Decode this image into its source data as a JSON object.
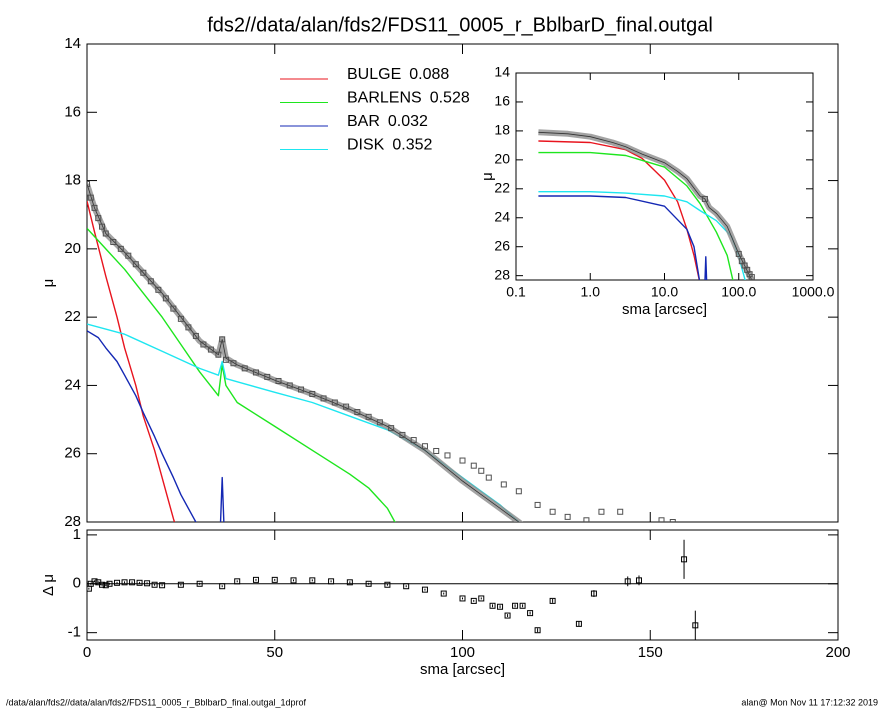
{
  "chart_data": [
    {
      "type": "line",
      "title": "fds2//data/alan/fds2/FDS11_0005_r_BblbarD_final.outgal",
      "ylabel": "μ",
      "xlim": [
        0,
        200
      ],
      "xticks": [
        0,
        50,
        100,
        150,
        200
      ],
      "ylim": [
        28,
        14
      ],
      "yticks": [
        14,
        16,
        18,
        20,
        22,
        24,
        26,
        28
      ],
      "legend": true,
      "series": [
        {
          "name": "BULGE",
          "fraction": 0.088,
          "color": "#e8141e",
          "style": "line",
          "x": [
            0,
            2,
            5,
            8,
            10,
            13,
            15,
            18,
            20,
            23,
            25
          ],
          "values": [
            18.6,
            19.5,
            20.8,
            22.0,
            22.9,
            24.0,
            24.9,
            25.9,
            26.7,
            27.9,
            28.6
          ]
        },
        {
          "name": "BARLENS",
          "fraction": 0.528,
          "color": "#1ee61e",
          "style": "line",
          "x": [
            0,
            5,
            10,
            15,
            20,
            25,
            30,
            35,
            36,
            37,
            40,
            50,
            60,
            70,
            75,
            80,
            82,
            84
          ],
          "values": [
            19.4,
            20.0,
            20.6,
            21.3,
            22.0,
            22.8,
            23.6,
            24.3,
            23.4,
            24.0,
            24.5,
            25.2,
            25.9,
            26.6,
            27.0,
            27.6,
            28.0,
            28.4
          ]
        },
        {
          "name": "BAR",
          "fraction": 0.032,
          "color": "#1428b4",
          "style": "line",
          "x": [
            0,
            3,
            5,
            8,
            10,
            13,
            15,
            18,
            20,
            23,
            25,
            28,
            30,
            32,
            35.5,
            36,
            36.5
          ],
          "values": [
            22.4,
            22.6,
            22.9,
            23.3,
            23.7,
            24.3,
            24.8,
            25.5,
            26.0,
            26.7,
            27.2,
            27.8,
            28.2,
            null,
            28.2,
            26.7,
            28.2
          ]
        },
        {
          "name": "DISK",
          "fraction": 0.352,
          "color": "#1ee6f0",
          "style": "line",
          "x": [
            0,
            10,
            20,
            30,
            35,
            36,
            37,
            50,
            60,
            70,
            80,
            90,
            100,
            105,
            110,
            115,
            118
          ],
          "values": [
            22.2,
            22.5,
            23.0,
            23.5,
            23.7,
            23.3,
            23.8,
            24.2,
            24.5,
            24.9,
            25.3,
            25.9,
            26.7,
            27.1,
            27.5,
            28.0,
            28.3
          ]
        },
        {
          "color": "#8c8c8c",
          "style": "band",
          "x": [
            0,
            2,
            5,
            10,
            15,
            20,
            25,
            30,
            35,
            36,
            37,
            40,
            50,
            60,
            70,
            80,
            90,
            100,
            105,
            110,
            115,
            118
          ],
          "values": [
            18.1,
            18.8,
            19.55,
            20.1,
            20.7,
            21.3,
            22.0,
            22.7,
            23.1,
            22.65,
            23.2,
            23.4,
            23.85,
            24.25,
            24.7,
            25.2,
            25.9,
            26.8,
            27.2,
            27.6,
            28.0,
            28.3
          ]
        },
        {
          "color": "#505050",
          "style": "points",
          "x": [
            0,
            1,
            2,
            3,
            4,
            5,
            7,
            9,
            11,
            13,
            15,
            17,
            19,
            21,
            23,
            25,
            27,
            29,
            31,
            33,
            35,
            36,
            37,
            39,
            42,
            45,
            48,
            51,
            54,
            57,
            60,
            63,
            66,
            69,
            72,
            75,
            78,
            81,
            84,
            87,
            90,
            93,
            96,
            100,
            103,
            105,
            107,
            111,
            115,
            120,
            124,
            128,
            133,
            137,
            142,
            153,
            156
          ],
          "values": [
            18.1,
            18.5,
            18.8,
            19.1,
            19.35,
            19.55,
            19.8,
            20.0,
            20.2,
            20.45,
            20.7,
            20.95,
            21.2,
            21.45,
            21.75,
            22.05,
            22.3,
            22.55,
            22.8,
            22.95,
            23.1,
            22.65,
            23.25,
            23.35,
            23.5,
            23.62,
            23.75,
            23.87,
            24.0,
            24.12,
            24.25,
            24.38,
            24.5,
            24.62,
            24.78,
            24.92,
            25.08,
            25.25,
            25.45,
            25.6,
            25.78,
            25.92,
            26.05,
            26.2,
            26.35,
            26.5,
            26.7,
            26.9,
            27.1,
            27.5,
            27.7,
            27.85,
            27.95,
            27.7,
            27.7,
            27.95,
            28.0
          ]
        }
      ]
    },
    {
      "type": "residual",
      "ylabel": "Δ μ",
      "xlabel": "sma [arcsec]",
      "xlim": [
        0,
        200
      ],
      "xticks": [
        0,
        50,
        100,
        150,
        200
      ],
      "ylim": [
        -1.15,
        1.1
      ],
      "yticks": [
        -1,
        0,
        1
      ],
      "hline": 0,
      "series": [
        {
          "color": "#000000",
          "style": "points",
          "x": [
            0.5,
            1,
            2,
            3,
            4,
            5,
            6,
            8,
            10,
            12,
            14,
            16,
            18,
            20,
            25,
            30,
            36,
            40,
            45,
            50,
            55,
            60,
            65,
            70,
            75,
            80,
            85,
            90,
            95,
            100,
            103,
            105,
            108,
            110,
            112,
            114,
            116,
            118,
            120,
            124,
            131,
            135,
            144,
            147,
            159,
            162
          ],
          "values": [
            -0.1,
            0.0,
            0.05,
            0.03,
            -0.02,
            -0.03,
            0.0,
            0.02,
            0.03,
            0.03,
            0.02,
            0.01,
            -0.02,
            -0.03,
            -0.02,
            0.0,
            -0.05,
            0.05,
            0.08,
            0.08,
            0.07,
            0.07,
            0.05,
            0.03,
            0.0,
            -0.02,
            -0.05,
            -0.12,
            -0.2,
            -0.3,
            -0.35,
            -0.3,
            -0.45,
            -0.47,
            -0.65,
            -0.45,
            -0.45,
            -0.6,
            -0.95,
            -0.35,
            -0.82,
            -0.2,
            0.05,
            0.07,
            0.5,
            -0.85
          ],
          "errors": [
            0.02,
            0.02,
            0.02,
            0.02,
            0.02,
            0.02,
            0.02,
            0.02,
            0.02,
            0.02,
            0.02,
            0.02,
            0.02,
            0.02,
            0.02,
            0.02,
            0.02,
            0.02,
            0.02,
            0.02,
            0.02,
            0.02,
            0.02,
            0.02,
            0.02,
            0.02,
            0.02,
            0.02,
            0.02,
            0.02,
            0.02,
            0.02,
            0.03,
            0.03,
            0.03,
            0.03,
            0.03,
            0.03,
            0.04,
            0.04,
            0.05,
            0.07,
            0.1,
            0.1,
            0.4,
            0.3
          ]
        }
      ]
    },
    {
      "type": "line",
      "ylabel": "μ",
      "xlabel": "sma [arcsec]",
      "xscale": "log",
      "xlim": [
        0.1,
        1000
      ],
      "xticks": [
        0.1,
        {
          "value": 1,
          "label": "1.0"
        },
        {
          "value": 10,
          "label": "10.0"
        },
        {
          "value": 100,
          "label": "100.0"
        },
        {
          "value": 1000,
          "label": "1000.0"
        }
      ],
      "ylim": [
        28.3,
        14
      ],
      "yticks": [
        14,
        16,
        18,
        20,
        22,
        24,
        26,
        28
      ],
      "series": [
        {
          "color": "#e8141e",
          "style": "line",
          "x": [
            0.2,
            1,
            3,
            5,
            10,
            15,
            20,
            25,
            30
          ],
          "values": [
            18.7,
            18.8,
            19.3,
            19.9,
            21.4,
            22.9,
            24.8,
            26.6,
            28.5
          ]
        },
        {
          "color": "#1ee61e",
          "style": "line",
          "x": [
            0.2,
            1,
            3,
            10,
            20,
            30,
            50,
            70,
            85
          ],
          "values": [
            19.5,
            19.5,
            19.7,
            20.5,
            21.8,
            23.0,
            25.0,
            26.6,
            28.5
          ]
        },
        {
          "color": "#1428b4",
          "style": "line",
          "x": [
            0.2,
            1,
            3,
            10,
            20,
            25,
            30,
            32,
            35,
            36,
            37
          ],
          "values": [
            22.5,
            22.5,
            22.6,
            23.2,
            24.8,
            26.0,
            28.5,
            null,
            28.5,
            26.7,
            28.5
          ]
        },
        {
          "color": "#1ee6f0",
          "style": "line",
          "x": [
            0.2,
            1,
            3,
            10,
            20,
            30,
            50,
            80,
            100,
            125
          ],
          "values": [
            22.2,
            22.2,
            22.3,
            22.5,
            22.9,
            23.5,
            24.2,
            25.3,
            26.7,
            28.5
          ]
        },
        {
          "color": "#8c8c8c",
          "style": "band",
          "x": [
            0.2,
            0.5,
            1,
            2,
            3,
            5,
            10,
            15,
            20,
            30,
            35,
            40,
            50,
            70,
            100,
            120,
            150
          ],
          "values": [
            18.1,
            18.2,
            18.4,
            18.8,
            19.1,
            19.6,
            20.2,
            20.8,
            21.3,
            22.5,
            22.7,
            23.3,
            23.7,
            24.6,
            26.5,
            27.3,
            28.3
          ]
        },
        {
          "color": "#505050",
          "style": "points",
          "x": [
            35,
            100,
            110,
            120,
            130,
            140,
            150
          ],
          "values": [
            22.7,
            26.5,
            27.0,
            27.3,
            27.6,
            27.9,
            28.1
          ]
        }
      ]
    }
  ],
  "footer": {
    "left": "/data/alan/fds2//data/alan/fds2/FDS11_0005_r_BblbarD_final.outgal_1dprof",
    "right": "alan@  Mon Nov 11 17:12:32 2019"
  }
}
